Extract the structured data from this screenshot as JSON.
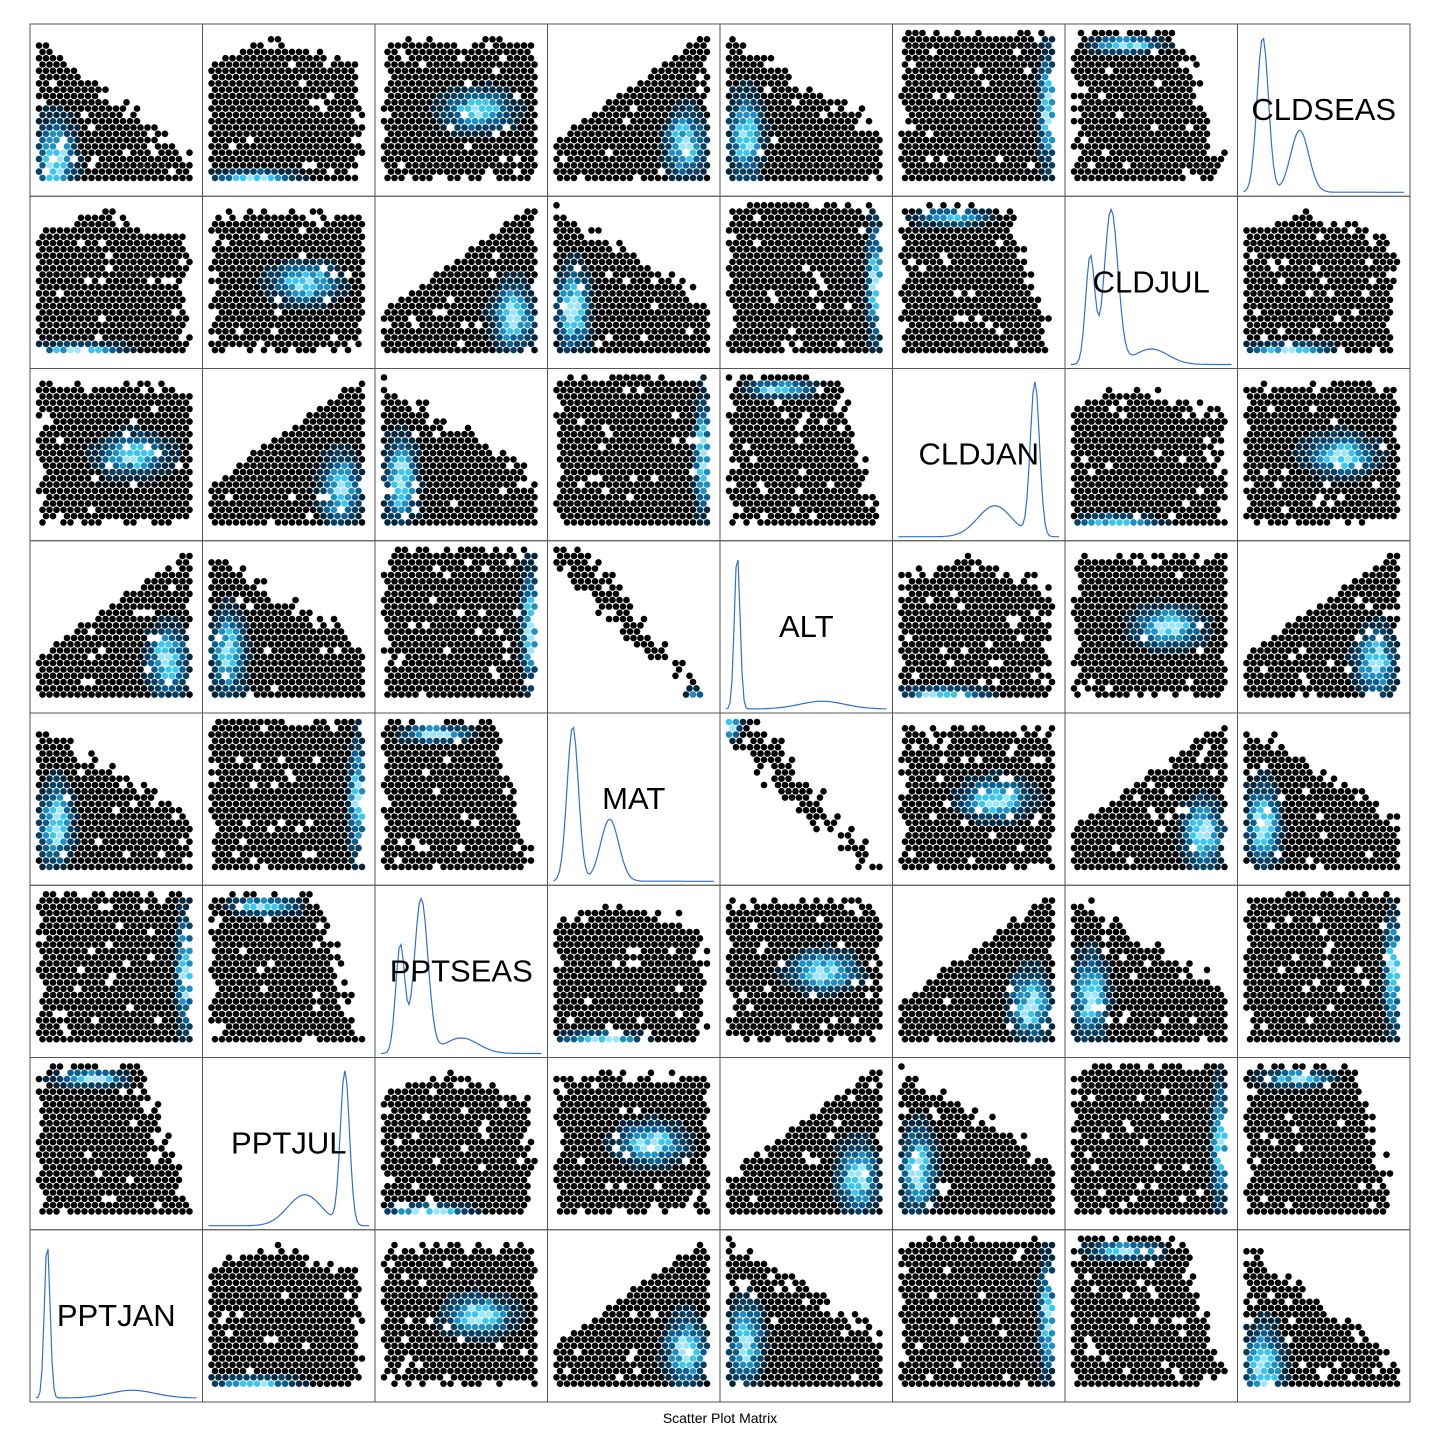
{
  "chart_data": {
    "type": "scatter-matrix",
    "variant": "hexbin",
    "xlabel": "Scatter Plot Matrix",
    "variables": [
      "PPTJAN",
      "PPTJUL",
      "PPTSEAS",
      "MAT",
      "ALT",
      "CLDJAN",
      "CLDJUL",
      "CLDSEAS"
    ],
    "diagonal": "density",
    "off_diagonal": "hexbin-density",
    "layout": "diagonal-bottom-left-to-top-right",
    "grid": false,
    "colors": {
      "low": "#000000",
      "mid": "#0a5f92",
      "high": "#39c6ef",
      "peak": "#9de6fa",
      "density_line": "#2f6fd6",
      "frame": "#555555"
    }
  }
}
